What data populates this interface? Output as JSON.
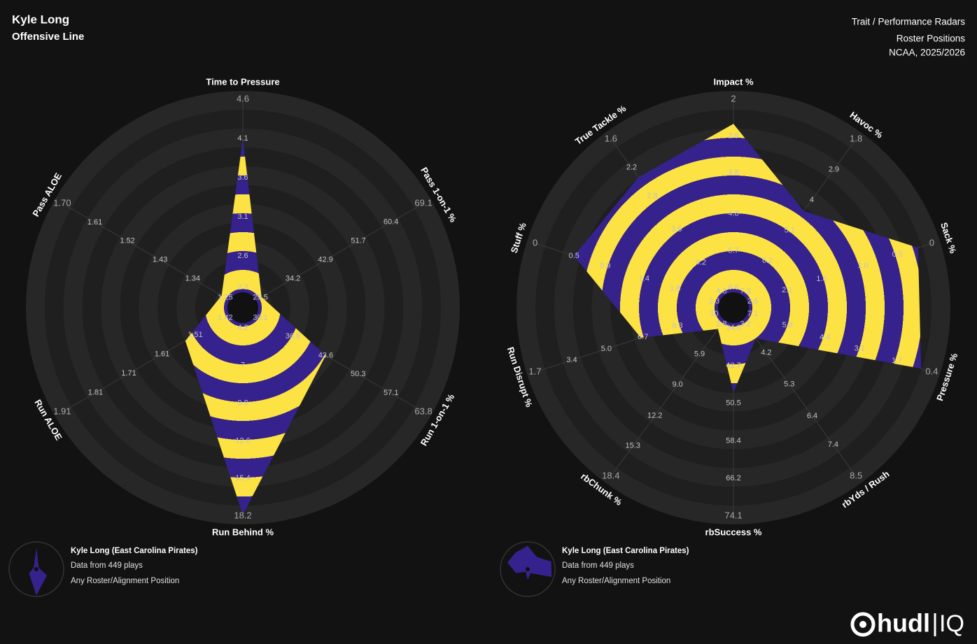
{
  "header": {
    "title": "Kyle Long",
    "subtitle": "Offensive Line",
    "report": "Trait / Performance Radars",
    "positions": "Roster Positions",
    "season": "NCAA, 2025/2026"
  },
  "logo": {
    "text": "hudl",
    "suffix": "IQ"
  },
  "chart_data": [
    {
      "type": "radar",
      "categories": [
        "Time to Pressure",
        "Pass 1-on-1 %",
        "Run 1-on-1 %",
        "Run Behind %",
        "Run ALOE",
        "Pass ALOE"
      ],
      "axis_ticks": [
        [
          2.2,
          2.6,
          3.1,
          3.6,
          4.1,
          4.6
        ],
        [
          25.5,
          34.2,
          42.9,
          51.7,
          60.4,
          69.1
        ],
        [
          30.1,
          36.8,
          43.6,
          50.3,
          57.1,
          63.8
        ],
        [
          4.2,
          7,
          9.8,
          12.6,
          15.4,
          18.2
        ],
        [
          1.42,
          1.51,
          1.61,
          1.71,
          1.81,
          1.91
        ],
        [
          1.25,
          1.34,
          1.43,
          1.52,
          1.61,
          {
            "value": 1.7,
            "label": "1.70"
          }
        ]
      ],
      "series": [
        {
          "name": "Kyle Long (East Carolina Pirates)",
          "color": "#35228c",
          "stripe_color": "#fde243",
          "values": [
            4.1,
            25.8,
            43.6,
            18.1,
            1.54,
            1.26
          ]
        }
      ],
      "notes": [
        "Data from 449 plays",
        "Any Roster/Alignment Position"
      ]
    },
    {
      "type": "radar",
      "categories": [
        "Impact %",
        "Havoc %",
        "Sack %",
        "Pressure %",
        "rbYds / Rush",
        "rbSuccess %",
        "rbChunk %",
        "Run Disrupt %",
        "Stuff %",
        "True Tackle %"
      ],
      "axis_ticks": [
        [
          6.6,
          5.7,
          4.8,
          3.8,
          2.9,
          2
        ],
        [
          7.3,
          6.2,
          5.1,
          4,
          2.9,
          1.8
        ],
        [
          2.6,
          2.1,
          1.6,
          {
            "value": 1,
            "label": "1.0"
          },
          0.5,
          0
        ],
        [
          7.1,
          5.8,
          4.4,
          3.1,
          1.7,
          0.4
        ],
        [
          3.2,
          4.2,
          5.3,
          6.4,
          7.4,
          8.5
        ],
        [
          34.8,
          42.7,
          50.5,
          58.4,
          66.2,
          74.1
        ],
        [
          2.8,
          5.9,
          {
            "value": 9,
            "label": "9.0"
          },
          12.2,
          15.3,
          18.4
        ],
        [
          10,
          8.3,
          6.7,
          {
            "value": 5,
            "label": "5.0"
          },
          3.4,
          1.7
        ],
        [
          2.3,
          1.8,
          1.4,
          0.9,
          0.5,
          0
        ],
        [
          4.8,
          4.2,
          3.5,
          2.8,
          2.2,
          1.6
        ]
      ],
      "series": [
        {
          "name": "Kyle Long (East Carolina Pirates)",
          "color": "#35228c",
          "stripe_color": "#fde243",
          "values": [
            2.6,
            4.4,
            0.2,
            0.8,
            3.7,
            48.3,
            3.3,
            6.6,
            0.5,
            2.4
          ]
        }
      ],
      "notes": [
        "Data from 449 plays",
        "Any Roster/Alignment Position"
      ]
    }
  ]
}
